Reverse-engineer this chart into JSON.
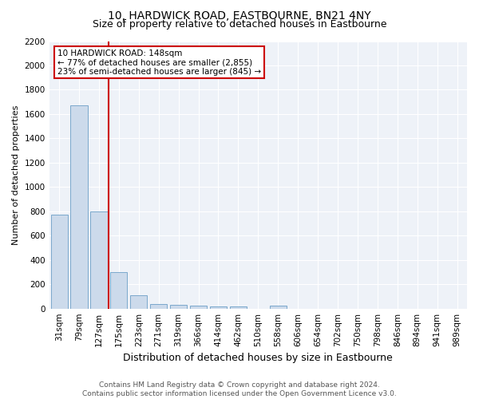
{
  "title": "10, HARDWICK ROAD, EASTBOURNE, BN21 4NY",
  "subtitle": "Size of property relative to detached houses in Eastbourne",
  "xlabel": "Distribution of detached houses by size in Eastbourne",
  "ylabel": "Number of detached properties",
  "categories": [
    "31sqm",
    "79sqm",
    "127sqm",
    "175sqm",
    "223sqm",
    "271sqm",
    "319sqm",
    "366sqm",
    "414sqm",
    "462sqm",
    "510sqm",
    "558sqm",
    "606sqm",
    "654sqm",
    "702sqm",
    "750sqm",
    "798sqm",
    "846sqm",
    "894sqm",
    "941sqm",
    "989sqm"
  ],
  "values": [
    770,
    1670,
    800,
    300,
    110,
    40,
    30,
    22,
    20,
    20,
    0,
    25,
    0,
    0,
    0,
    0,
    0,
    0,
    0,
    0,
    0
  ],
  "bar_color": "#ccdaeb",
  "bar_edge_color": "#7aa8cc",
  "annotation_line1": "10 HARDWICK ROAD: 148sqm",
  "annotation_line2": "← 77% of detached houses are smaller (2,855)",
  "annotation_line3": "23% of semi-detached houses are larger (845) →",
  "property_line_x": 2.48,
  "ylim": [
    0,
    2200
  ],
  "yticks": [
    0,
    200,
    400,
    600,
    800,
    1000,
    1200,
    1400,
    1600,
    1800,
    2000,
    2200
  ],
  "box_color": "#cc0000",
  "line_color": "#cc0000",
  "bg_color": "#eef2f8",
  "footer": "Contains HM Land Registry data © Crown copyright and database right 2024.\nContains public sector information licensed under the Open Government Licence v3.0.",
  "title_fontsize": 10,
  "subtitle_fontsize": 9,
  "ylabel_fontsize": 8,
  "xlabel_fontsize": 9,
  "tick_fontsize": 7.5,
  "annotation_fontsize": 7.5,
  "footer_fontsize": 6.5
}
